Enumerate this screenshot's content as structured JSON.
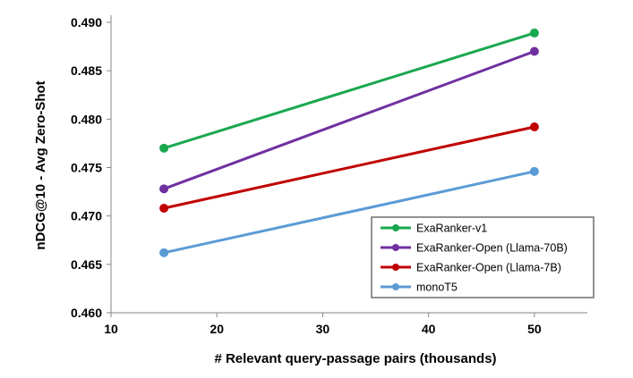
{
  "chart_data": {
    "type": "line",
    "title": "",
    "xlabel": "# Relevant query-passage pairs (thousands)",
    "ylabel": "nDCG@10 - Avg Zero-Shot",
    "xlim": [
      10,
      55
    ],
    "ylim": [
      0.46,
      0.49
    ],
    "xticks": [
      "10",
      "20",
      "30",
      "40",
      "50"
    ],
    "yticks": [
      "0.460",
      "0.465",
      "0.470",
      "0.475",
      "0.480",
      "0.485",
      "0.490"
    ],
    "x": [
      15,
      50
    ],
    "grid": false,
    "legend_position": "bottom-right",
    "series": [
      {
        "name": "ExaRanker-v1",
        "color": "#1aa84f",
        "values": [
          0.477,
          0.4889
        ]
      },
      {
        "name": "ExaRanker-Open (Llama-70B)",
        "color": "#7030a0",
        "values": [
          0.4728,
          0.487
        ]
      },
      {
        "name": "ExaRanker-Open (Llama-7B)",
        "color": "#c00000",
        "values": [
          0.4708,
          0.4792
        ]
      },
      {
        "name": "monoT5",
        "color": "#5b9bd5",
        "values": [
          0.4662,
          0.4746
        ]
      }
    ]
  }
}
